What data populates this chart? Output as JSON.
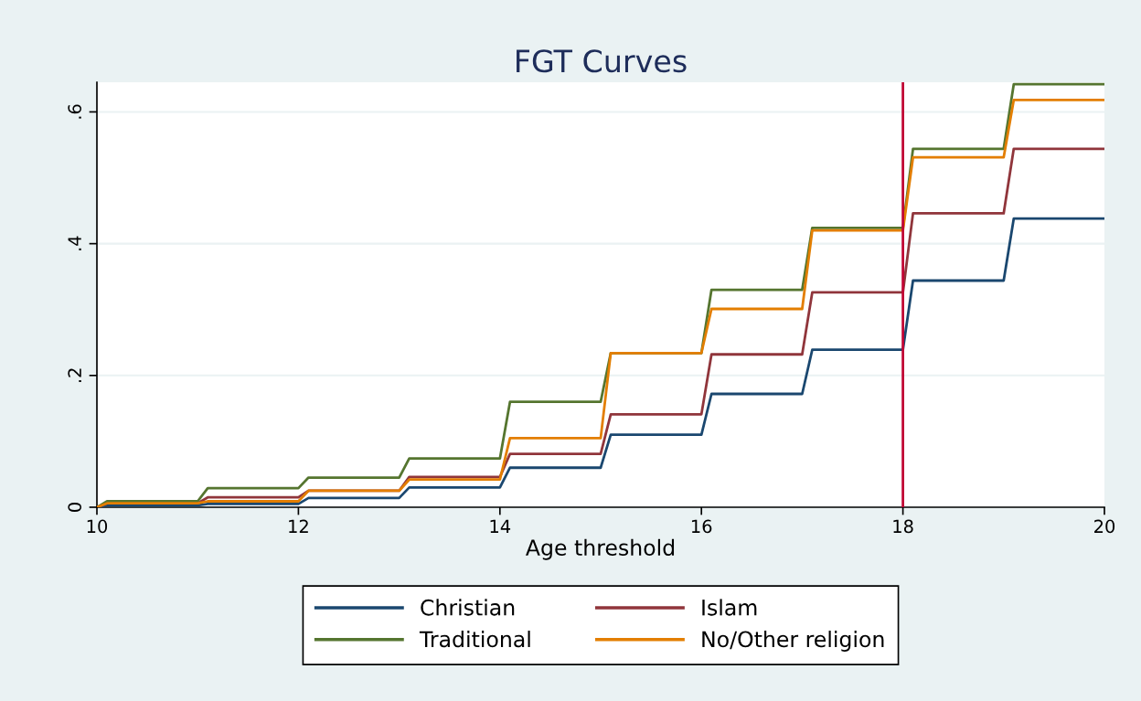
{
  "chart_data": {
    "type": "line",
    "title": "FGT Curves",
    "xlabel": "Age threshold",
    "x": [
      10,
      10.1,
      11,
      11.1,
      12,
      12.1,
      13,
      13.1,
      14,
      14.1,
      15,
      15.1,
      16,
      16.1,
      17,
      17.1,
      18,
      18.1,
      19,
      19.1,
      20
    ],
    "series": [
      {
        "name": "Christian",
        "color": "#1a476f",
        "values": [
          0,
          0.003,
          0.003,
          0.005,
          0.005,
          0.014,
          0.014,
          0.03,
          0.03,
          0.06,
          0.06,
          0.11,
          0.11,
          0.172,
          0.172,
          0.239,
          0.239,
          0.344,
          0.344,
          0.438,
          0.438
        ]
      },
      {
        "name": "Islam",
        "color": "#90353b",
        "values": [
          0,
          0.006,
          0.006,
          0.015,
          0.015,
          0.025,
          0.025,
          0.046,
          0.046,
          0.081,
          0.081,
          0.141,
          0.141,
          0.232,
          0.232,
          0.326,
          0.326,
          0.446,
          0.446,
          0.544,
          0.544
        ]
      },
      {
        "name": "Traditional",
        "color": "#55752f",
        "values": [
          0,
          0.009,
          0.009,
          0.029,
          0.029,
          0.045,
          0.045,
          0.074,
          0.074,
          0.16,
          0.16,
          0.234,
          0.234,
          0.33,
          0.33,
          0.424,
          0.424,
          0.544,
          0.544,
          0.642,
          0.642
        ]
      },
      {
        "name": "No/Other religion",
        "color": "#e37e00",
        "values": [
          0,
          0.006,
          0.006,
          0.009,
          0.009,
          0.025,
          0.025,
          0.042,
          0.042,
          0.105,
          0.105,
          0.234,
          0.234,
          0.301,
          0.301,
          0.42,
          0.42,
          0.531,
          0.531,
          0.618,
          0.618
        ]
      }
    ],
    "xlim": [
      10,
      20
    ],
    "xticks": [
      10,
      12,
      14,
      16,
      18,
      20
    ],
    "ylim": [
      0,
      0.645
    ],
    "yticks": [
      {
        "value": 0,
        "label": "0"
      },
      {
        "value": 0.2,
        "label": ".2"
      },
      {
        "value": 0.4,
        "label": ".4"
      },
      {
        "value": 0.6,
        "label": ".6"
      }
    ],
    "ref_lines": [
      {
        "axis": "x",
        "value": 18,
        "color": "#c10534"
      }
    ],
    "grid": "y",
    "legend": "bottom",
    "line_style": "solid",
    "marker": "none"
  }
}
